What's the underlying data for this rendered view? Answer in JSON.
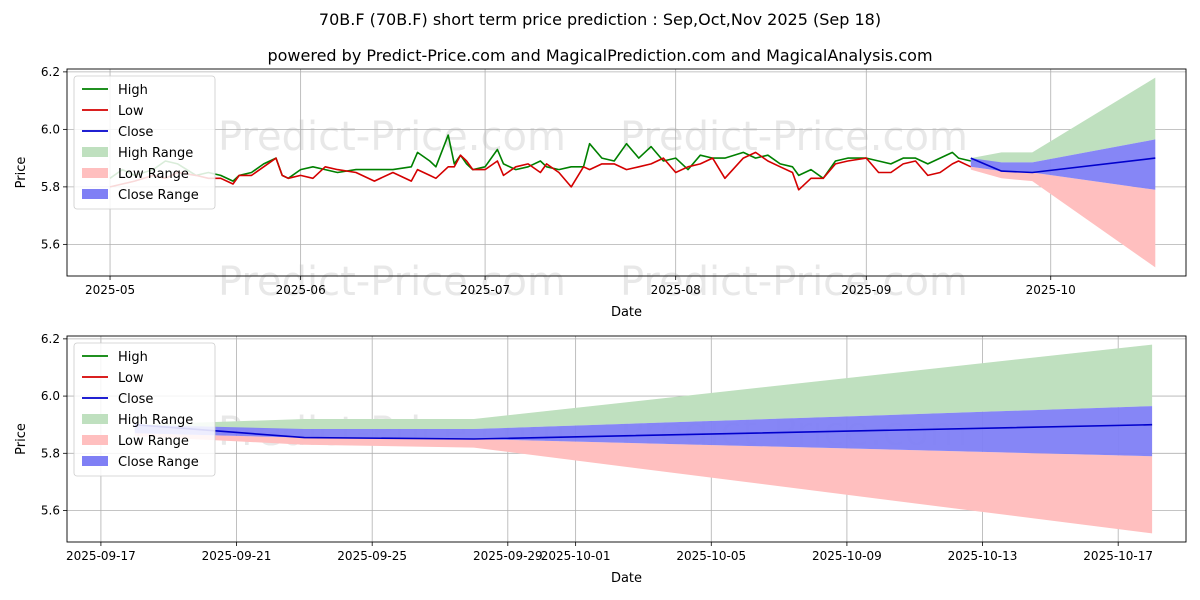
{
  "header": {
    "title": "70B.F (70B.F) short term price prediction : Sep,Oct,Nov 2025 (Sep 18)",
    "subtitle": "powered by Predict-Price.com and MagicalPrediction.com and MagicalAnalysis.com"
  },
  "watermark": "Predict-Price.com",
  "colors": {
    "high": "#008000",
    "low": "#d40000",
    "close": "#0000cc",
    "high_range": "#bfe0bf",
    "low_range": "#ffbfbf",
    "close_range": "#7f7ff5"
  },
  "chart_data": [
    {
      "type": "line",
      "xlabel": "Date",
      "ylabel": "Price",
      "ylim": [
        5.49,
        6.21
      ],
      "xlim": [
        "2025-04-24",
        "2025-10-23"
      ],
      "yticks": [
        "5.6",
        "5.8",
        "6.0",
        "6.2"
      ],
      "xticks": [
        "2025-05",
        "2025-06",
        "2025-07",
        "2025-08",
        "2025-09",
        "2025-10"
      ],
      "legend": [
        "High",
        "Low",
        "Close",
        "High Range",
        "Low Range",
        "Close Range"
      ],
      "legend_position": "upper-left",
      "grid": true,
      "series": [
        {
          "name": "High",
          "x": [
            "2025-05-01",
            "2025-05-03",
            "2025-05-05",
            "2025-05-08",
            "2025-05-10",
            "2025-05-12",
            "2025-05-15",
            "2025-05-17",
            "2025-05-19",
            "2025-05-21",
            "2025-05-22",
            "2025-05-24",
            "2025-05-26",
            "2025-05-28",
            "2025-05-29",
            "2025-05-30",
            "2025-06-01",
            "2025-06-03",
            "2025-06-05",
            "2025-06-07",
            "2025-06-10",
            "2025-06-13",
            "2025-06-16",
            "2025-06-19",
            "2025-06-20",
            "2025-06-22",
            "2025-06-23",
            "2025-06-25",
            "2025-06-26",
            "2025-06-27",
            "2025-06-28",
            "2025-06-29",
            "2025-07-01",
            "2025-07-03",
            "2025-07-04",
            "2025-07-06",
            "2025-07-08",
            "2025-07-10",
            "2025-07-11",
            "2025-07-13",
            "2025-07-15",
            "2025-07-17",
            "2025-07-18",
            "2025-07-20",
            "2025-07-22",
            "2025-07-24",
            "2025-07-26",
            "2025-07-28",
            "2025-07-30",
            "2025-08-01",
            "2025-08-03",
            "2025-08-05",
            "2025-08-07",
            "2025-08-09",
            "2025-08-12",
            "2025-08-14",
            "2025-08-16",
            "2025-08-18",
            "2025-08-20",
            "2025-08-21",
            "2025-08-23",
            "2025-08-25",
            "2025-08-27",
            "2025-08-29",
            "2025-09-01",
            "2025-09-03",
            "2025-09-05",
            "2025-09-07",
            "2025-09-09",
            "2025-09-11",
            "2025-09-13",
            "2025-09-15",
            "2025-09-16",
            "2025-09-18"
          ],
          "values": [
            5.83,
            5.86,
            5.84,
            5.86,
            5.89,
            5.88,
            5.84,
            5.85,
            5.84,
            5.82,
            5.84,
            5.85,
            5.88,
            5.9,
            5.84,
            5.83,
            5.86,
            5.87,
            5.86,
            5.85,
            5.86,
            5.86,
            5.86,
            5.87,
            5.92,
            5.89,
            5.87,
            5.98,
            5.88,
            5.91,
            5.88,
            5.86,
            5.87,
            5.93,
            5.88,
            5.86,
            5.87,
            5.89,
            5.87,
            5.86,
            5.87,
            5.87,
            5.95,
            5.9,
            5.89,
            5.95,
            5.9,
            5.94,
            5.89,
            5.9,
            5.86,
            5.91,
            5.9,
            5.9,
            5.92,
            5.9,
            5.91,
            5.88,
            5.87,
            5.84,
            5.86,
            5.83,
            5.89,
            5.9,
            5.9,
            5.89,
            5.88,
            5.9,
            5.9,
            5.88,
            5.9,
            5.92,
            5.9,
            5.89
          ]
        },
        {
          "name": "Low",
          "x": [
            "2025-05-01",
            "2025-05-03",
            "2025-05-05",
            "2025-05-08",
            "2025-05-10",
            "2025-05-12",
            "2025-05-15",
            "2025-05-17",
            "2025-05-19",
            "2025-05-21",
            "2025-05-22",
            "2025-05-24",
            "2025-05-26",
            "2025-05-28",
            "2025-05-29",
            "2025-05-30",
            "2025-06-01",
            "2025-06-03",
            "2025-06-05",
            "2025-06-07",
            "2025-06-10",
            "2025-06-13",
            "2025-06-16",
            "2025-06-19",
            "2025-06-20",
            "2025-06-22",
            "2025-06-23",
            "2025-06-25",
            "2025-06-26",
            "2025-06-27",
            "2025-06-28",
            "2025-06-29",
            "2025-07-01",
            "2025-07-03",
            "2025-07-04",
            "2025-07-06",
            "2025-07-08",
            "2025-07-10",
            "2025-07-11",
            "2025-07-13",
            "2025-07-15",
            "2025-07-17",
            "2025-07-18",
            "2025-07-20",
            "2025-07-22",
            "2025-07-24",
            "2025-07-26",
            "2025-07-28",
            "2025-07-30",
            "2025-08-01",
            "2025-08-03",
            "2025-08-05",
            "2025-08-07",
            "2025-08-09",
            "2025-08-12",
            "2025-08-14",
            "2025-08-16",
            "2025-08-18",
            "2025-08-20",
            "2025-08-21",
            "2025-08-23",
            "2025-08-25",
            "2025-08-27",
            "2025-08-29",
            "2025-09-01",
            "2025-09-03",
            "2025-09-05",
            "2025-09-07",
            "2025-09-09",
            "2025-09-11",
            "2025-09-13",
            "2025-09-15",
            "2025-09-16",
            "2025-09-18"
          ],
          "values": [
            5.8,
            5.81,
            5.82,
            5.84,
            5.83,
            5.85,
            5.84,
            5.83,
            5.83,
            5.81,
            5.84,
            5.84,
            5.87,
            5.9,
            5.84,
            5.83,
            5.84,
            5.83,
            5.87,
            5.86,
            5.85,
            5.82,
            5.85,
            5.82,
            5.86,
            5.84,
            5.83,
            5.87,
            5.87,
            5.91,
            5.89,
            5.86,
            5.86,
            5.89,
            5.84,
            5.87,
            5.88,
            5.85,
            5.88,
            5.85,
            5.8,
            5.87,
            5.86,
            5.88,
            5.88,
            5.86,
            5.87,
            5.88,
            5.9,
            5.85,
            5.87,
            5.88,
            5.9,
            5.83,
            5.9,
            5.92,
            5.89,
            5.87,
            5.85,
            5.79,
            5.83,
            5.83,
            5.88,
            5.89,
            5.9,
            5.85,
            5.85,
            5.88,
            5.89,
            5.84,
            5.85,
            5.88,
            5.89,
            5.87
          ]
        },
        {
          "name": "Close",
          "x": [
            "2025-09-18",
            "2025-09-23",
            "2025-09-28",
            "2025-10-18"
          ],
          "values": [
            5.9,
            5.855,
            5.85,
            5.9
          ]
        },
        {
          "name": "High Range",
          "x": [
            "2025-09-18",
            "2025-09-23",
            "2025-09-28",
            "2025-10-18"
          ],
          "upper": [
            5.9,
            5.92,
            5.92,
            6.18
          ],
          "lower": [
            5.88,
            5.885,
            5.885,
            5.965
          ]
        },
        {
          "name": "Low Range",
          "x": [
            "2025-09-18",
            "2025-09-23",
            "2025-09-28",
            "2025-10-18"
          ],
          "upper": [
            5.87,
            5.855,
            5.85,
            5.79
          ],
          "lower": [
            5.86,
            5.83,
            5.82,
            5.52
          ]
        },
        {
          "name": "Close Range",
          "x": [
            "2025-09-18",
            "2025-09-23",
            "2025-09-28",
            "2025-10-18"
          ],
          "upper": [
            5.9,
            5.885,
            5.885,
            5.965
          ],
          "lower": [
            5.87,
            5.855,
            5.85,
            5.79
          ]
        }
      ]
    },
    {
      "type": "line",
      "xlabel": "Date",
      "ylabel": "Price",
      "ylim": [
        5.49,
        6.21
      ],
      "xlim": [
        "2025-09-16",
        "2025-10-19"
      ],
      "yticks": [
        "5.6",
        "5.8",
        "6.0",
        "6.2"
      ],
      "xticks": [
        "2025-09-17",
        "2025-09-21",
        "2025-09-25",
        "2025-09-29",
        "2025-10-01",
        "2025-10-05",
        "2025-10-09",
        "2025-10-13",
        "2025-10-17"
      ],
      "legend": [
        "High",
        "Low",
        "Close",
        "High Range",
        "Low Range",
        "Close Range"
      ],
      "legend_position": "upper-left",
      "grid": true,
      "series": [
        {
          "name": "Close",
          "x": [
            "2025-09-18",
            "2025-09-23",
            "2025-09-28",
            "2025-10-18"
          ],
          "values": [
            5.9,
            5.855,
            5.85,
            5.9
          ]
        },
        {
          "name": "High Range",
          "x": [
            "2025-09-18",
            "2025-09-23",
            "2025-09-28",
            "2025-10-18"
          ],
          "upper": [
            5.9,
            5.92,
            5.92,
            6.18
          ],
          "lower": [
            5.88,
            5.885,
            5.885,
            5.965
          ]
        },
        {
          "name": "Low Range",
          "x": [
            "2025-09-18",
            "2025-09-23",
            "2025-09-28",
            "2025-10-18"
          ],
          "upper": [
            5.87,
            5.855,
            5.85,
            5.79
          ],
          "lower": [
            5.86,
            5.83,
            5.82,
            5.52
          ]
        },
        {
          "name": "Close Range",
          "x": [
            "2025-09-18",
            "2025-09-23",
            "2025-09-28",
            "2025-10-18"
          ],
          "upper": [
            5.9,
            5.885,
            5.885,
            5.965
          ],
          "lower": [
            5.87,
            5.855,
            5.85,
            5.79
          ]
        }
      ]
    }
  ]
}
